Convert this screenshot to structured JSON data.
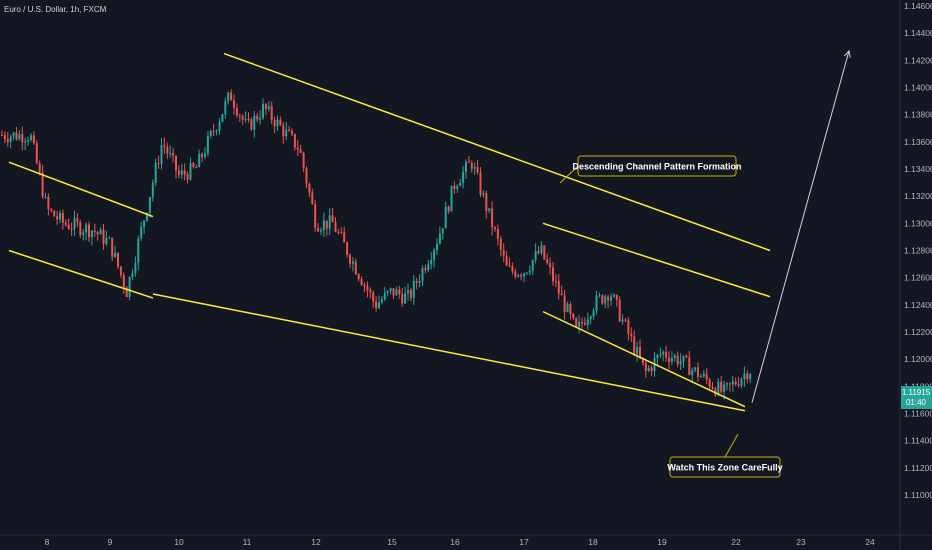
{
  "header": {
    "symbol": "Euro / U.S. Dollar, 1h, FXCM"
  },
  "colors": {
    "background": "#131722",
    "up": "#26a69a",
    "down": "#ef5350",
    "trendline": "#ffeb3b",
    "axis_text": "#b2b5be",
    "annotation_border": "#c9b000",
    "badge": "#26a69a"
  },
  "chart_data": {
    "type": "candlestick",
    "title": "Euro / U.S. Dollar, 1h, FXCM",
    "xlabel": "",
    "ylabel": "",
    "x_ticks": [
      "8",
      "9",
      "10",
      "11",
      "12",
      "15",
      "16",
      "17",
      "18",
      "19",
      "22",
      "23",
      "24"
    ],
    "y_ticks": [
      "1.14600",
      "1.14400",
      "1.14200",
      "1.14000",
      "1.13800",
      "1.13600",
      "1.13400",
      "1.13200",
      "1.13000",
      "1.12800",
      "1.12600",
      "1.12400",
      "1.12200",
      "1.12000",
      "1.11800",
      "1.11600",
      "1.11400",
      "1.11200",
      "1.11000"
    ],
    "ylim": [
      1.109,
      1.1465
    ],
    "last_price": "1.11915",
    "countdown": "01:40",
    "price_path": [
      {
        "x": "8",
        "y": 1.1365
      },
      {
        "x": "8",
        "y": 1.131
      },
      {
        "x": "8",
        "y": 1.13
      },
      {
        "x": "9",
        "y": 1.1295
      },
      {
        "x": "9",
        "y": 1.1285
      },
      {
        "x": "9",
        "y": 1.125
      },
      {
        "x": "10",
        "y": 1.136
      },
      {
        "x": "10",
        "y": 1.1335
      },
      {
        "x": "10",
        "y": 1.134
      },
      {
        "x": "11",
        "y": 1.1395
      },
      {
        "x": "11",
        "y": 1.137
      },
      {
        "x": "11",
        "y": 1.1385
      },
      {
        "x": "12",
        "y": 1.1355
      },
      {
        "x": "12",
        "y": 1.13
      },
      {
        "x": "12",
        "y": 1.13
      },
      {
        "x": "15",
        "y": 1.124
      },
      {
        "x": "15",
        "y": 1.125
      },
      {
        "x": "15",
        "y": 1.1245
      },
      {
        "x": "16",
        "y": 1.129
      },
      {
        "x": "16",
        "y": 1.133
      },
      {
        "x": "16",
        "y": 1.1345
      },
      {
        "x": "17",
        "y": 1.1265
      },
      {
        "x": "17",
        "y": 1.1265
      },
      {
        "x": "17",
        "y": 1.128
      },
      {
        "x": "18",
        "y": 1.122
      },
      {
        "x": "18",
        "y": 1.124
      },
      {
        "x": "18",
        "y": 1.125
      },
      {
        "x": "19",
        "y": 1.119
      },
      {
        "x": "19",
        "y": 1.1205
      },
      {
        "x": "19",
        "y": 1.12
      },
      {
        "x": "22",
        "y": 1.1175
      },
      {
        "x": "22",
        "y": 1.1192
      }
    ],
    "trendlines": [
      {
        "from": {
          "x": "8",
          "y": 1.1345
        },
        "to": {
          "x": "9",
          "y": 1.1305
        }
      },
      {
        "from": {
          "x": "8",
          "y": 1.128
        },
        "to": {
          "x": "9",
          "y": 1.1245
        }
      },
      {
        "from": {
          "x": "11",
          "y": 1.1425
        },
        "to": {
          "x": "23",
          "y": 1.128
        }
      },
      {
        "from": {
          "x": "9",
          "y": 1.1248
        },
        "to": {
          "x": "22",
          "y": 1.1162
        }
      },
      {
        "from": {
          "x": "17",
          "y": 1.13
        },
        "to": {
          "x": "23",
          "y": 1.1246
        }
      },
      {
        "from": {
          "x": "17",
          "y": 1.1235
        },
        "to": {
          "x": "22",
          "y": 1.1165
        }
      }
    ],
    "projection": {
      "from": {
        "x": "22",
        "y": 1.1168
      },
      "to": {
        "x": "24",
        "y": 1.1427
      }
    },
    "annotations": [
      {
        "text": "Descending Channel Pattern Formation"
      },
      {
        "text": "Watch This Zone CareFully"
      }
    ]
  }
}
